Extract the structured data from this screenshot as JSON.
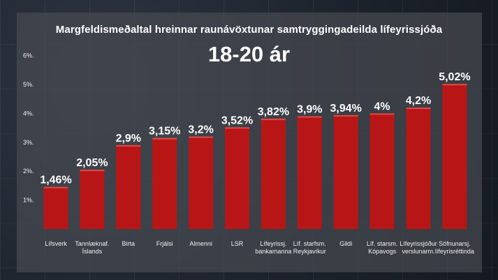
{
  "chart_data": {
    "type": "bar",
    "title": "Margfeldismeðaltal hreinnar raunávöxtunar samtryggingadeilda lífeyrissjóða",
    "subtitle": "18-20 ár",
    "xlabel": "",
    "ylabel": "",
    "ylim": [
      0,
      6
    ],
    "yticks": [
      "1%.",
      "2%.",
      "3%.",
      "4%.",
      "5%.",
      "6%."
    ],
    "grid": false,
    "bar_color": "#b81616",
    "categories": [
      [
        "Lífsverk"
      ],
      [
        "Tannlæknaf.",
        "Íslands"
      ],
      [
        "Birta"
      ],
      [
        "Frjálsi"
      ],
      [
        "Almenni"
      ],
      [
        "LSR"
      ],
      [
        "Lífeyrissj.",
        "bankamanna"
      ],
      [
        "Líf. starfsm.",
        "Reykjavíkur"
      ],
      [
        "Gildi"
      ],
      [
        "Líf. starsm.",
        "Kópavogs"
      ],
      [
        "Lífeyrissjóður",
        "verslunarm."
      ],
      [
        "Söfnunarsj.",
        "lífeyrisréttinda"
      ]
    ],
    "values": [
      1.46,
      2.05,
      2.9,
      3.15,
      3.2,
      3.52,
      3.82,
      3.9,
      3.94,
      4.0,
      4.2,
      5.02
    ],
    "data_labels": [
      "1,46%",
      "2,05%",
      "2,9%",
      "3,15%",
      "3,2%",
      "3,52%",
      "3,82%",
      "3,9%",
      "3,94%",
      "4%",
      "4,2%",
      "5,02%"
    ]
  }
}
